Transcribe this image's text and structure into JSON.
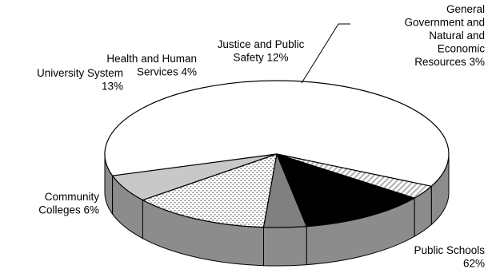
{
  "chart_data": {
    "type": "pie",
    "three_d": true,
    "legend": "none",
    "slices": [
      {
        "label_lines": [
          "Public Schools",
          "62%"
        ],
        "value": 62,
        "pattern": "white"
      },
      {
        "label_lines": [
          "Community",
          "Colleges 6%"
        ],
        "value": 6,
        "pattern": "light-gray"
      },
      {
        "label_lines": [
          "University System",
          "13%"
        ],
        "value": 13,
        "pattern": "dotted"
      },
      {
        "label_lines": [
          "Health and Human",
          "Services 4%"
        ],
        "value": 4,
        "pattern": "dark-gray"
      },
      {
        "label_lines": [
          "Justice and Public",
          "Safety 12%"
        ],
        "value": 12,
        "pattern": "black"
      },
      {
        "label_lines": [
          "General",
          "Government and",
          "Natural and",
          "Economic",
          "Resources 3%"
        ],
        "value": 3,
        "pattern": "diagonal-hatch"
      }
    ],
    "colors": {
      "white": "#ffffff",
      "light-gray": "#c8c8c8",
      "dark-gray": "#808080",
      "black": "#000000",
      "side": "#8c8c8c",
      "outline": "#000000"
    }
  }
}
